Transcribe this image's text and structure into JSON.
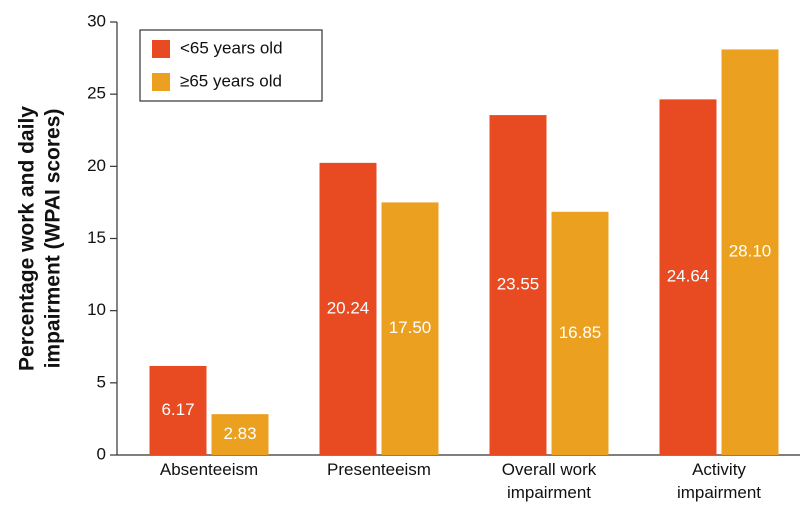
{
  "chart_data": {
    "type": "bar",
    "ylabel": [
      "Percentage work and daily",
      "impairment (WPAI scores)"
    ],
    "categories": [
      "Absenteeism",
      "Presenteeism",
      "Overall work impairment",
      "Activity impairment"
    ],
    "series": [
      {
        "name": "<65 years old",
        "color": "#e84a22",
        "values": [
          6.17,
          20.24,
          23.55,
          24.64
        ],
        "value_labels": [
          "6.17",
          "20.24",
          "23.55",
          "24.64"
        ]
      },
      {
        "name": "≥65 years old",
        "color": "#eba020",
        "values": [
          2.83,
          17.5,
          16.85,
          28.1
        ],
        "value_labels": [
          "2.83",
          "17.50",
          "16.85",
          "28.10"
        ]
      }
    ],
    "ylim": [
      0,
      30
    ],
    "yticks": [
      0,
      5,
      10,
      15,
      20,
      25,
      30
    ],
    "legend": "upper left"
  }
}
